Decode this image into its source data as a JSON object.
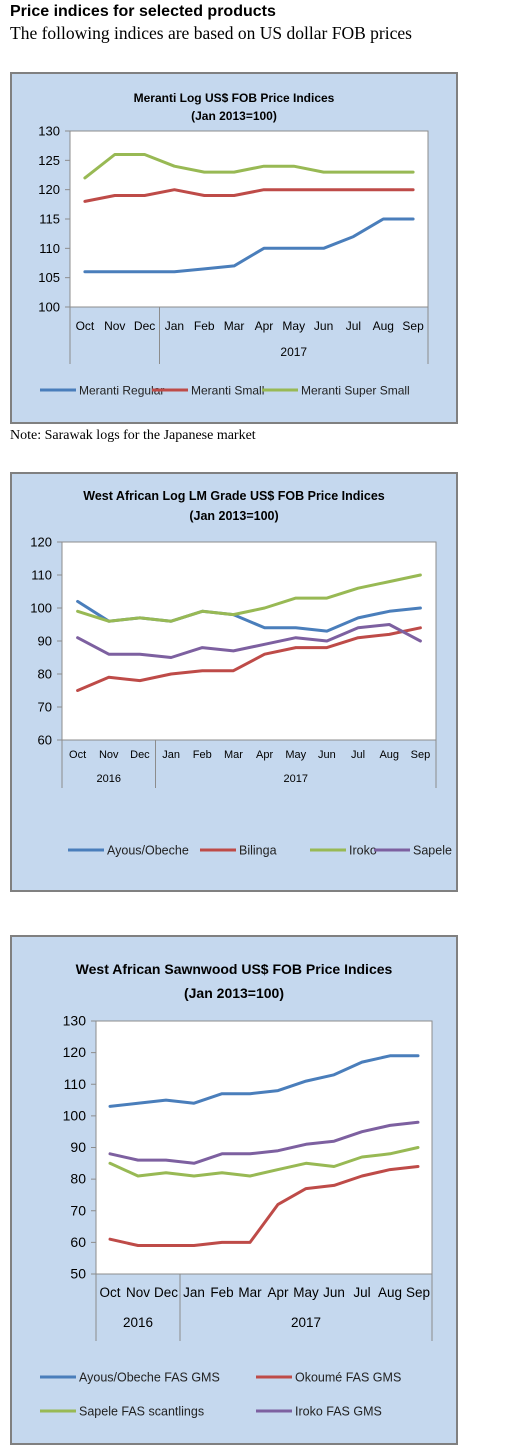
{
  "header": {
    "title": "Price indices for selected products",
    "subtitle": "The following indices are based on US dollar FOB prices"
  },
  "note": "Note: Sarawak logs for the Japanese market",
  "chart_data": [
    {
      "type": "line",
      "title": "Meranti Log US$ FOB Price Indices",
      "subtitle": "(Jan 2013=100)",
      "categories": [
        "Oct",
        "Nov",
        "Dec",
        "Jan",
        "Feb",
        "Mar",
        "Apr",
        "May",
        "Jun",
        "Jul",
        "Aug",
        "Sep"
      ],
      "groups": [
        {
          "label": "2017",
          "from": 3,
          "to": 11
        }
      ],
      "ylim": [
        100,
        130
      ],
      "yticks": [
        100,
        105,
        110,
        115,
        120,
        125,
        130
      ],
      "grid": false,
      "legend": "bottom",
      "series": [
        {
          "name": "Meranti Regular",
          "color": "#4a7ebb",
          "values": [
            106,
            106,
            106,
            106,
            106.5,
            107,
            110,
            110,
            110,
            112,
            115,
            115
          ]
        },
        {
          "name": "Meranti Small",
          "color": "#be4b48",
          "values": [
            118,
            119,
            119,
            120,
            119,
            119,
            120,
            120,
            120,
            120,
            120,
            120
          ]
        },
        {
          "name": "Meranti Super Small",
          "color": "#98b954",
          "values": [
            122,
            126,
            126,
            124,
            123,
            123,
            124,
            124,
            123,
            123,
            123,
            123
          ]
        }
      ]
    },
    {
      "type": "line",
      "title": "West African Log LM Grade US$ FOB Price Indices",
      "subtitle": "(Jan 2013=100)",
      "categories": [
        "Oct",
        "Nov",
        "Dec",
        "Jan",
        "Feb",
        "Mar",
        "Apr",
        "May",
        "Jun",
        "Jul",
        "Aug",
        "Sep"
      ],
      "groups": [
        {
          "label": "2016",
          "from": 0,
          "to": 2
        },
        {
          "label": "2017",
          "from": 3,
          "to": 11
        }
      ],
      "ylim": [
        60,
        120
      ],
      "yticks": [
        60,
        70,
        80,
        90,
        100,
        110,
        120
      ],
      "grid": false,
      "legend": "bottom",
      "series": [
        {
          "name": "Ayous/Obeche",
          "color": "#4a7ebb",
          "values": [
            102,
            96,
            97,
            96,
            99,
            98,
            94,
            94,
            93,
            97,
            99,
            100
          ]
        },
        {
          "name": "Bilinga",
          "color": "#be4b48",
          "values": [
            75,
            79,
            78,
            80,
            81,
            81,
            86,
            88,
            88,
            91,
            92,
            94
          ]
        },
        {
          "name": "Iroko",
          "color": "#98b954",
          "values": [
            99,
            96,
            97,
            96,
            99,
            98,
            100,
            103,
            103,
            106,
            108,
            110
          ]
        },
        {
          "name": "Sapele",
          "color": "#7d60a0",
          "values": [
            91,
            86,
            86,
            85,
            88,
            87,
            89,
            91,
            90,
            94,
            95,
            90
          ]
        }
      ]
    },
    {
      "type": "line",
      "title": "West African Sawnwood US$ FOB Price Indices",
      "subtitle": "(Jan 2013=100)",
      "categories": [
        "Oct",
        "Nov",
        "Dec",
        "Jan",
        "Feb",
        "Mar",
        "Apr",
        "May",
        "Jun",
        "Jul",
        "Aug",
        "Sep"
      ],
      "groups": [
        {
          "label": "2016",
          "from": 0,
          "to": 2
        },
        {
          "label": "2017",
          "from": 3,
          "to": 11
        }
      ],
      "ylim": [
        50,
        130
      ],
      "yticks": [
        50,
        60,
        70,
        80,
        90,
        100,
        110,
        120,
        130
      ],
      "grid": false,
      "legend": "bottom",
      "series": [
        {
          "name": "Ayous/Obeche  FAS GMS",
          "color": "#4a7ebb",
          "values": [
            103,
            104,
            105,
            104,
            107,
            107,
            108,
            111,
            113,
            117,
            119,
            119
          ]
        },
        {
          "name": "Okoumé  FAS GMS",
          "color": "#be4b48",
          "values": [
            61,
            59,
            59,
            59,
            60,
            60,
            72,
            77,
            78,
            81,
            83,
            84
          ]
        },
        {
          "name": "Sapele FAS scantlings",
          "color": "#98b954",
          "values": [
            85,
            81,
            82,
            81,
            82,
            81,
            83,
            85,
            84,
            87,
            88,
            90
          ]
        },
        {
          "name": "Iroko FAS GMS",
          "color": "#7d60a0",
          "values": [
            88,
            86,
            86,
            85,
            88,
            88,
            89,
            91,
            92,
            95,
            97,
            98
          ]
        }
      ]
    }
  ]
}
